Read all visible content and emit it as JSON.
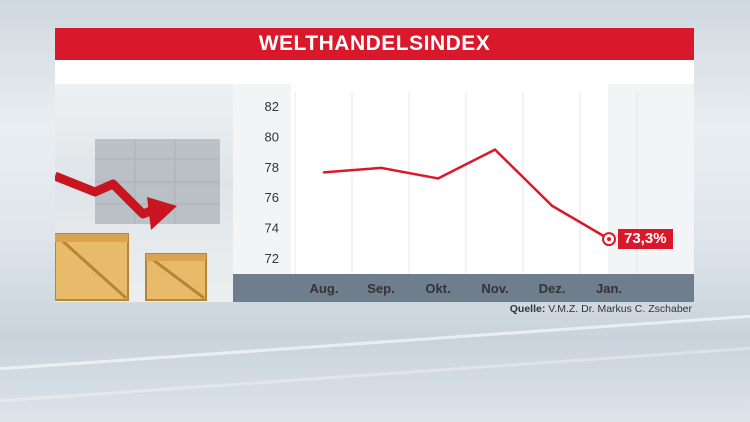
{
  "header": {
    "title": "WELTHANDELSINDEX"
  },
  "source": {
    "label": "Quelle:",
    "text": "V.M.Z. Dr. Markus C. Zschaber"
  },
  "colors": {
    "accent": "#d9192b",
    "axis_band": "#6f7e8c",
    "band_light": "#f2f4f6"
  },
  "illustration": {
    "icons": [
      "red-down-arrow-icon",
      "wooden-crates-icon",
      "shipping-containers-icon"
    ]
  },
  "chart_data": {
    "type": "line",
    "title": "",
    "xlabel": "",
    "ylabel": "",
    "categories": [
      "Aug.",
      "Sep.",
      "Okt.",
      "Nov.",
      "Dez.",
      "Jan."
    ],
    "series": [
      {
        "values": [
          77.7,
          78.0,
          77.3,
          79.2,
          75.5,
          73.3
        ],
        "color": "#d9192b"
      }
    ],
    "ylim": [
      71,
      83
    ],
    "yticks": [
      72,
      74,
      76,
      78,
      80,
      82
    ],
    "grid": true,
    "annotations": [
      {
        "category": "Jan.",
        "text": "73,3%"
      }
    ]
  }
}
